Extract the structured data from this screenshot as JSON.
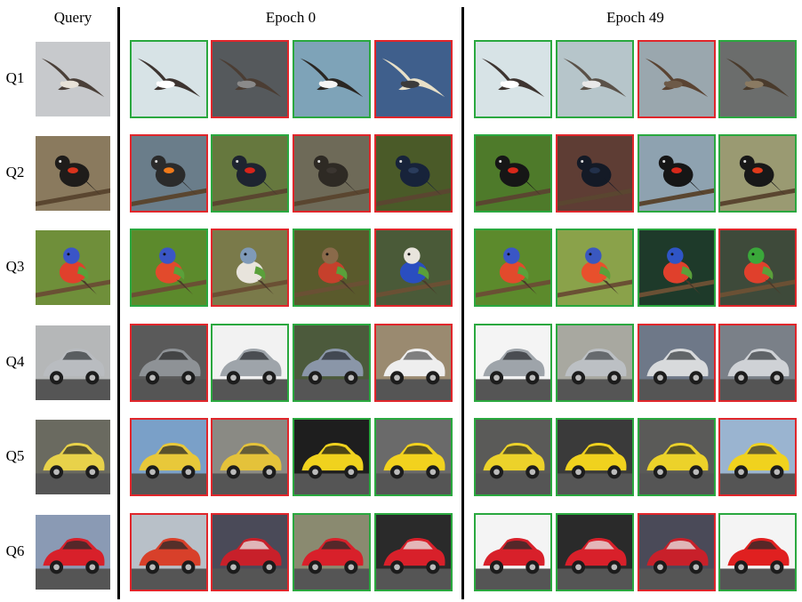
{
  "headers": {
    "query": "Query",
    "epoch0": "Epoch 0",
    "epoch49": "Epoch 49"
  },
  "colors": {
    "correct": "#2aa83f",
    "wrong": "#e0262b"
  },
  "rows": [
    {
      "label": "Q1",
      "query": {
        "subject": "albatross-icon",
        "bg": "#c7c9cc",
        "body": "#4a3f38",
        "accent": "#e8e2d8"
      },
      "epoch0": [
        {
          "correct": true,
          "subject": "albatross-icon",
          "bg": "#d7e3e6",
          "body": "#3d3430",
          "accent": "#ffffff"
        },
        {
          "correct": false,
          "subject": "albatross-icon",
          "bg": "#55595c",
          "body": "#4b3d33",
          "accent": "#8a8a8a"
        },
        {
          "correct": true,
          "subject": "albatross-icon",
          "bg": "#7ea3b8",
          "body": "#2a2622",
          "accent": "#f4f4f4"
        },
        {
          "correct": false,
          "subject": "albatross-icon",
          "bg": "#3f5f8c",
          "body": "#e8e0c8",
          "accent": "#3b3b3b"
        }
      ],
      "epoch49": [
        {
          "correct": true,
          "subject": "albatross-icon",
          "bg": "#d7e3e6",
          "body": "#3d3430",
          "accent": "#ffffff"
        },
        {
          "correct": true,
          "subject": "albatross-icon",
          "bg": "#b6c5ca",
          "body": "#5a5148",
          "accent": "#e8e8e8"
        },
        {
          "correct": false,
          "subject": "albatross-icon",
          "bg": "#9aa7ae",
          "body": "#5a4332",
          "accent": "#6d5a48"
        },
        {
          "correct": true,
          "subject": "albatross-icon",
          "bg": "#6b6d6c",
          "body": "#4a3b2c",
          "accent": "#8a7a62"
        }
      ]
    },
    {
      "label": "Q2",
      "query": {
        "subject": "blackbird-icon",
        "bg": "#8a7a5e",
        "body": "#1e1c1a",
        "accent": "#d9331c"
      },
      "epoch0": [
        {
          "correct": false,
          "subject": "blackbird-icon",
          "bg": "#6a7d8a",
          "body": "#2b2b2b",
          "accent": "#f07a1a"
        },
        {
          "correct": true,
          "subject": "blackbird-icon",
          "bg": "#66783e",
          "body": "#1e2430",
          "accent": "#d8241a"
        },
        {
          "correct": false,
          "subject": "blackbird-icon",
          "bg": "#6e6a58",
          "body": "#2e2a24",
          "accent": "#3a3530"
        },
        {
          "correct": false,
          "subject": "blackbird-icon",
          "bg": "#4a5a28",
          "body": "#17233a",
          "accent": "#2a3c5c"
        }
      ],
      "epoch49": [
        {
          "correct": true,
          "subject": "blackbird-icon",
          "bg": "#4e7a2a",
          "body": "#161616",
          "accent": "#d8281a"
        },
        {
          "correct": false,
          "subject": "blackbird-icon",
          "bg": "#5e3d34",
          "body": "#141a26",
          "accent": "#22304a"
        },
        {
          "correct": true,
          "subject": "blackbird-icon",
          "bg": "#8ea2b0",
          "body": "#161616",
          "accent": "#d8281a"
        },
        {
          "correct": true,
          "subject": "blackbird-icon",
          "bg": "#9a9a72",
          "body": "#181818",
          "accent": "#e03a1a"
        }
      ]
    },
    {
      "label": "Q3",
      "query": {
        "subject": "bunting-icon",
        "bg": "#6f8f3a",
        "body": "#e0402c",
        "accent": "#3a55c8"
      },
      "epoch0": [
        {
          "correct": true,
          "subject": "bunting-icon",
          "bg": "#5c8a2c",
          "body": "#e24a2c",
          "accent": "#3a56c6"
        },
        {
          "correct": false,
          "subject": "bunting-icon",
          "bg": "#7a7a4a",
          "body": "#e8e4dc",
          "accent": "#7f9ab8"
        },
        {
          "correct": true,
          "subject": "bunting-icon",
          "bg": "#5a5a2c",
          "body": "#c6402c",
          "accent": "#8a6a4a"
        },
        {
          "correct": false,
          "subject": "bunting-icon",
          "bg": "#4a5a38",
          "body": "#2a4ec0",
          "accent": "#e8e4dc"
        }
      ],
      "epoch49": [
        {
          "correct": true,
          "subject": "bunting-icon",
          "bg": "#5c8a2c",
          "body": "#e24a2c",
          "accent": "#3a56c6"
        },
        {
          "correct": true,
          "subject": "bunting-icon",
          "bg": "#8aa24a",
          "body": "#e8502c",
          "accent": "#3a58c0"
        },
        {
          "correct": true,
          "subject": "bunting-icon",
          "bg": "#1e3a2a",
          "body": "#e0402c",
          "accent": "#2f55c6"
        },
        {
          "correct": false,
          "subject": "bunting-icon",
          "bg": "#3e4a3a",
          "body": "#e0402c",
          "accent": "#3aa83a"
        }
      ]
    },
    {
      "label": "Q4",
      "query": {
        "subject": "car-icon",
        "bg": "#b5b7b8",
        "body": "#b9bcc0",
        "accent": "#3a3d40"
      },
      "epoch0": [
        {
          "correct": false,
          "subject": "car-icon",
          "bg": "#5a5a5a",
          "body": "#8e9296",
          "accent": "#2a2a2a"
        },
        {
          "correct": true,
          "subject": "car-icon",
          "bg": "#f2f2f2",
          "body": "#9ea4aa",
          "accent": "#2e3034"
        },
        {
          "correct": true,
          "subject": "car-icon",
          "bg": "#4c5a3c",
          "body": "#8a96a8",
          "accent": "#2a2e36"
        },
        {
          "correct": false,
          "subject": "car-icon",
          "bg": "#9a8a70",
          "body": "#eeeeee",
          "accent": "#5a5a5a"
        }
      ],
      "epoch49": [
        {
          "correct": true,
          "subject": "car-icon",
          "bg": "#f4f4f4",
          "body": "#9ea4aa",
          "accent": "#2e3034"
        },
        {
          "correct": true,
          "subject": "car-icon",
          "bg": "#a8a8a0",
          "body": "#bcc0c4",
          "accent": "#4a4e52"
        },
        {
          "correct": false,
          "subject": "car-icon",
          "bg": "#6e7888",
          "body": "#d8dadc",
          "accent": "#3a3e42"
        },
        {
          "correct": false,
          "subject": "car-icon",
          "bg": "#7a8088",
          "body": "#cfd2d6",
          "accent": "#3a3e42"
        }
      ]
    },
    {
      "label": "Q5",
      "query": {
        "subject": "car-icon",
        "bg": "#6a6a60",
        "body": "#e8d24a",
        "accent": "#2a2a2a"
      },
      "epoch0": [
        {
          "correct": false,
          "subject": "car-icon",
          "bg": "#7aa0c8",
          "body": "#e8c83a",
          "accent": "#2a2a2a"
        },
        {
          "correct": false,
          "subject": "car-icon",
          "bg": "#8a8a84",
          "body": "#e4c23a",
          "accent": "#3a3a3a"
        },
        {
          "correct": true,
          "subject": "car-icon",
          "bg": "#1e1e1e",
          "body": "#f0d21e",
          "accent": "#141414"
        },
        {
          "correct": true,
          "subject": "car-icon",
          "bg": "#6a6a6a",
          "body": "#f2d21e",
          "accent": "#2a2a2a"
        }
      ],
      "epoch49": [
        {
          "correct": true,
          "subject": "car-icon",
          "bg": "#5a5a58",
          "body": "#ecd22a",
          "accent": "#2a2a2a"
        },
        {
          "correct": true,
          "subject": "car-icon",
          "bg": "#3a3a3a",
          "body": "#f0d21e",
          "accent": "#1e1e1e"
        },
        {
          "correct": true,
          "subject": "car-icon",
          "bg": "#5a5a58",
          "body": "#ecd22a",
          "accent": "#2a2a2a"
        },
        {
          "correct": false,
          "subject": "car-icon",
          "bg": "#9ab4d0",
          "body": "#f0d21e",
          "accent": "#3a3a3a"
        }
      ]
    },
    {
      "label": "Q6",
      "query": {
        "subject": "car-icon",
        "bg": "#8a9ab4",
        "body": "#d8202a",
        "accent": "#2a2a2a"
      },
      "epoch0": [
        {
          "correct": false,
          "subject": "car-icon",
          "bg": "#b8c0c8",
          "body": "#d8402a",
          "accent": "#2a2a2a"
        },
        {
          "correct": false,
          "subject": "car-icon",
          "bg": "#4a4a58",
          "body": "#c8202a",
          "accent": "#e8e8e8"
        },
        {
          "correct": true,
          "subject": "car-icon",
          "bg": "#8a8a70",
          "body": "#d8202a",
          "accent": "#2a2a2a"
        },
        {
          "correct": true,
          "subject": "car-icon",
          "bg": "#2a2a2a",
          "body": "#d8202a",
          "accent": "#e8e8e8"
        }
      ],
      "epoch49": [
        {
          "correct": true,
          "subject": "car-icon",
          "bg": "#f4f4f4",
          "body": "#d8202a",
          "accent": "#2a2a2a"
        },
        {
          "correct": true,
          "subject": "car-icon",
          "bg": "#2a2a2a",
          "body": "#d8202a",
          "accent": "#e8e8e8"
        },
        {
          "correct": false,
          "subject": "car-icon",
          "bg": "#4a4a58",
          "body": "#c8202a",
          "accent": "#e8e8e8"
        },
        {
          "correct": true,
          "subject": "car-icon",
          "bg": "#f4f4f4",
          "body": "#e02020",
          "accent": "#2a2a2a"
        }
      ]
    }
  ]
}
